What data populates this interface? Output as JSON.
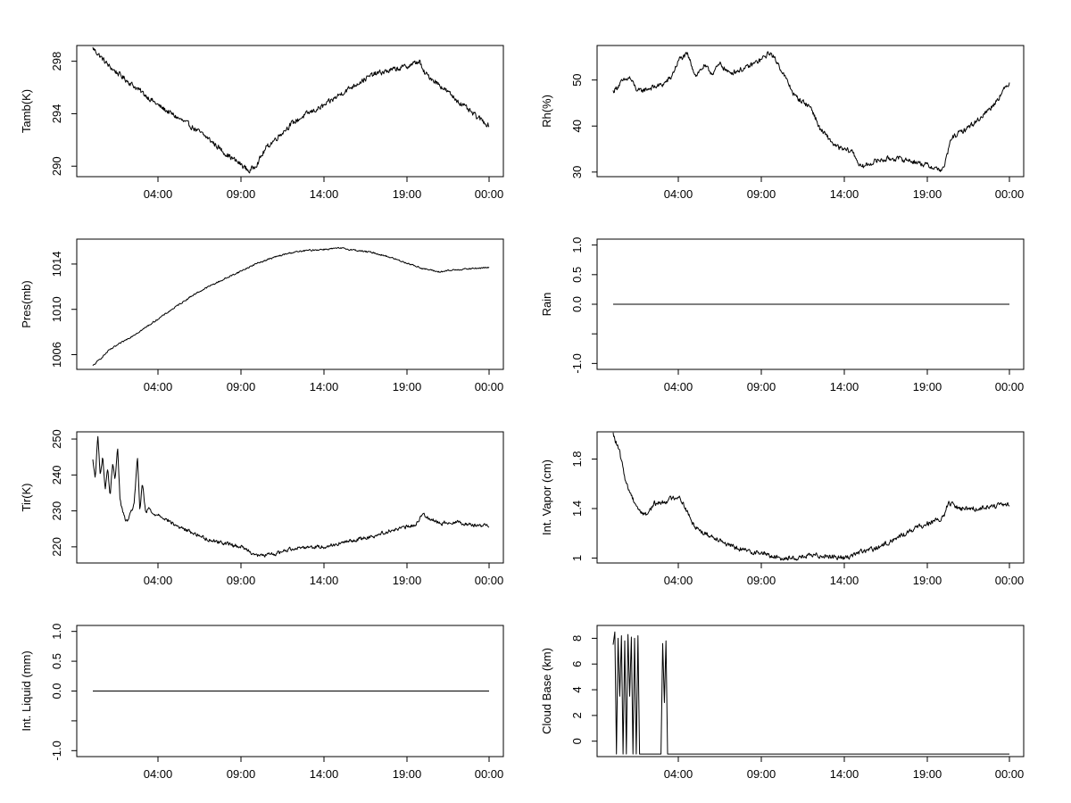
{
  "chart_data": [
    {
      "type": "line",
      "ylabel": "Tamb(K)",
      "xticks": [
        "04:00",
        "09:00",
        "14:00",
        "19:00",
        "00:00"
      ],
      "xlim": [
        0,
        24
      ],
      "ylim": [
        289.2,
        299.2
      ],
      "yticks": [
        290,
        294,
        298
      ],
      "x": [
        0,
        0.5,
        1,
        2,
        3,
        4,
        5,
        6,
        7,
        8,
        9,
        9.5,
        10,
        10.5,
        11,
        12,
        13,
        14,
        15,
        16,
        17,
        18,
        19,
        19.8,
        20,
        21,
        22,
        23,
        24
      ],
      "y": [
        299.0,
        298.3,
        297.6,
        296.6,
        295.6,
        294.6,
        293.8,
        293.0,
        292.1,
        291.0,
        290.1,
        289.6,
        290.3,
        291.4,
        292.0,
        293.2,
        294.0,
        294.6,
        295.5,
        296.3,
        297.0,
        297.3,
        297.6,
        298.0,
        297.2,
        296.2,
        295.1,
        294.0,
        293.1
      ],
      "noise": 0.18
    },
    {
      "type": "line",
      "ylabel": "Rh(%)",
      "xticks": [
        "04:00",
        "09:00",
        "14:00",
        "19:00",
        "00:00"
      ],
      "xlim": [
        0,
        24
      ],
      "ylim": [
        29,
        57.5
      ],
      "yticks": [
        30,
        40,
        50
      ],
      "x": [
        0,
        0.5,
        1,
        1.5,
        2,
        3,
        3.5,
        4,
        4.5,
        5,
        5.5,
        6,
        6.5,
        7,
        8,
        9,
        9.5,
        10,
        11,
        12,
        12.5,
        13,
        13.5,
        14,
        14.5,
        15,
        16,
        17,
        18,
        19,
        19.8,
        20,
        20.5,
        21,
        22,
        23,
        24
      ],
      "y": [
        47.5,
        49.5,
        50.5,
        47.5,
        48.0,
        49.0,
        50.5,
        54.5,
        55.5,
        51.0,
        53.0,
        51.5,
        53.5,
        51.5,
        52.5,
        54.5,
        56.0,
        53.5,
        46.5,
        44.0,
        39.5,
        37.5,
        35.5,
        34.8,
        34.5,
        31.0,
        32.5,
        33.0,
        32.5,
        31.5,
        30.5,
        30.6,
        37.5,
        38.5,
        41.0,
        44.5,
        49.5
      ],
      "noise": 0.5
    },
    {
      "type": "line",
      "ylabel": "Pres(mb)",
      "xticks": [
        "04:00",
        "09:00",
        "14:00",
        "19:00",
        "00:00"
      ],
      "xlim": [
        0,
        24
      ],
      "ylim": [
        1004.7,
        1016.2
      ],
      "yticks": [
        1006,
        1010,
        1014
      ],
      "x": [
        0,
        1,
        2,
        3,
        4,
        5,
        6,
        7,
        8,
        9,
        10,
        11,
        12,
        13,
        14,
        15,
        16,
        17,
        18,
        19,
        20,
        21,
        22,
        23,
        24
      ],
      "y": [
        1005.0,
        1006.4,
        1007.3,
        1008.2,
        1009.2,
        1010.2,
        1011.2,
        1012.0,
        1012.7,
        1013.4,
        1014.1,
        1014.6,
        1015.0,
        1015.2,
        1015.3,
        1015.4,
        1015.2,
        1015.0,
        1014.6,
        1014.1,
        1013.6,
        1013.3,
        1013.5,
        1013.6,
        1013.7
      ],
      "noise": 0.06
    },
    {
      "type": "line",
      "ylabel": "Rain",
      "xticks": [
        "04:00",
        "09:00",
        "14:00",
        "19:00",
        "00:00"
      ],
      "xlim": [
        0,
        24
      ],
      "ylim": [
        -1.1,
        1.1
      ],
      "yticks": [
        -1.0,
        -0.5,
        0.0,
        0.5,
        1.0
      ],
      "ytick_labels": [
        "-1.0",
        "",
        "0.0",
        "0.5",
        "1.0"
      ],
      "x": [
        0,
        24
      ],
      "y": [
        0,
        0
      ],
      "noise": 0
    },
    {
      "type": "line",
      "ylabel": "Tir(K)",
      "xticks": [
        "04:00",
        "09:00",
        "14:00",
        "19:00",
        "00:00"
      ],
      "xlim": [
        0,
        24
      ],
      "ylim": [
        215.5,
        252
      ],
      "yticks": [
        220,
        230,
        240,
        250
      ],
      "x": [
        0,
        0.15,
        0.3,
        0.45,
        0.6,
        0.75,
        0.9,
        1.05,
        1.2,
        1.35,
        1.5,
        1.65,
        1.8,
        2.0,
        2.2,
        2.5,
        2.7,
        2.85,
        3.0,
        3.2,
        3.4,
        3.6,
        4.0,
        5.0,
        6.0,
        7.0,
        8.0,
        9.0,
        10.0,
        11.0,
        12.0,
        13.0,
        14.0,
        15.0,
        16.0,
        17.0,
        18.0,
        19.0,
        19.5,
        20.0,
        21.0,
        22.0,
        23.0,
        24.0
      ],
      "y": [
        244,
        239,
        251,
        240,
        245,
        236,
        242,
        234,
        243,
        239,
        248,
        233,
        230,
        227,
        228,
        232,
        245,
        230,
        238,
        229,
        231,
        229,
        229,
        226,
        224,
        222,
        221,
        220,
        217.5,
        218,
        219.5,
        220,
        220,
        221,
        222,
        223,
        224.5,
        225.5,
        226,
        229,
        226.5,
        227,
        226,
        226
      ],
      "noise": 0.45
    },
    {
      "type": "line",
      "ylabel": "Int. Vapor (cm)",
      "xticks": [
        "04:00",
        "09:00",
        "14:00",
        "19:00",
        "00:00"
      ],
      "xlim": [
        0,
        24
      ],
      "ylim": [
        0.96,
        2.02
      ],
      "yticks": [
        1.0,
        1.4,
        1.8
      ],
      "x": [
        0,
        0.4,
        0.8,
        1.2,
        1.6,
        2.0,
        2.5,
        3.0,
        3.5,
        4.0,
        4.4,
        4.8,
        5.5,
        6.5,
        7.0,
        8.0,
        9.0,
        10.0,
        11.0,
        12.0,
        13.0,
        14.0,
        15.0,
        16.0,
        17.0,
        18.0,
        19.0,
        19.5,
        20.0,
        20.3,
        21.0,
        22.0,
        23.0,
        24.0
      ],
      "y": [
        2.0,
        1.85,
        1.6,
        1.48,
        1.38,
        1.35,
        1.44,
        1.45,
        1.48,
        1.5,
        1.4,
        1.28,
        1.2,
        1.15,
        1.1,
        1.06,
        1.04,
        1.0,
        1.0,
        1.02,
        1.02,
        1.0,
        1.05,
        1.08,
        1.15,
        1.22,
        1.28,
        1.3,
        1.32,
        1.45,
        1.4,
        1.4,
        1.42,
        1.43
      ],
      "noise": 0.018
    },
    {
      "type": "line",
      "ylabel": "Int. Liquid (mm)",
      "xticks": [
        "04:00",
        "09:00",
        "14:00",
        "19:00",
        "00:00"
      ],
      "xlim": [
        0,
        24
      ],
      "ylim": [
        -1.1,
        1.1
      ],
      "yticks": [
        -1.0,
        -0.5,
        0.0,
        0.5,
        1.0
      ],
      "ytick_labels": [
        "-1.0",
        "",
        "0.0",
        "0.5",
        "1.0"
      ],
      "x": [
        0,
        24
      ],
      "y": [
        0,
        0
      ],
      "noise": 0
    },
    {
      "type": "line",
      "ylabel": "Cloud Base (km)",
      "xticks": [
        "04:00",
        "09:00",
        "14:00",
        "19:00",
        "00:00"
      ],
      "xlim": [
        0,
        24
      ],
      "ylim": [
        -1.2,
        9.0
      ],
      "yticks": [
        0,
        2,
        4,
        6,
        8
      ],
      "x": [
        0,
        0.1,
        0.2,
        0.3,
        0.4,
        0.5,
        0.6,
        0.7,
        0.8,
        0.9,
        1.0,
        1.1,
        1.2,
        1.3,
        1.4,
        1.5,
        1.6,
        1.7,
        1.8,
        1.9,
        2.0,
        2.1,
        2.2,
        2.3,
        2.4,
        2.5,
        2.6,
        2.7,
        2.8,
        2.9,
        3.0,
        3.1,
        3.2,
        3.3,
        3.4,
        24.0
      ],
      "y": [
        7.5,
        8.5,
        -1,
        8.0,
        3.5,
        8.2,
        -1,
        7.8,
        -1,
        8.3,
        3.5,
        8.1,
        -1,
        8.0,
        -1,
        8.2,
        -1,
        -1,
        -1,
        -1,
        -1,
        -1,
        -1,
        -1,
        -1,
        -1,
        -1,
        -1,
        -1,
        -1,
        7.6,
        3.0,
        7.8,
        -1,
        -1,
        -1
      ],
      "noise": 0
    }
  ]
}
